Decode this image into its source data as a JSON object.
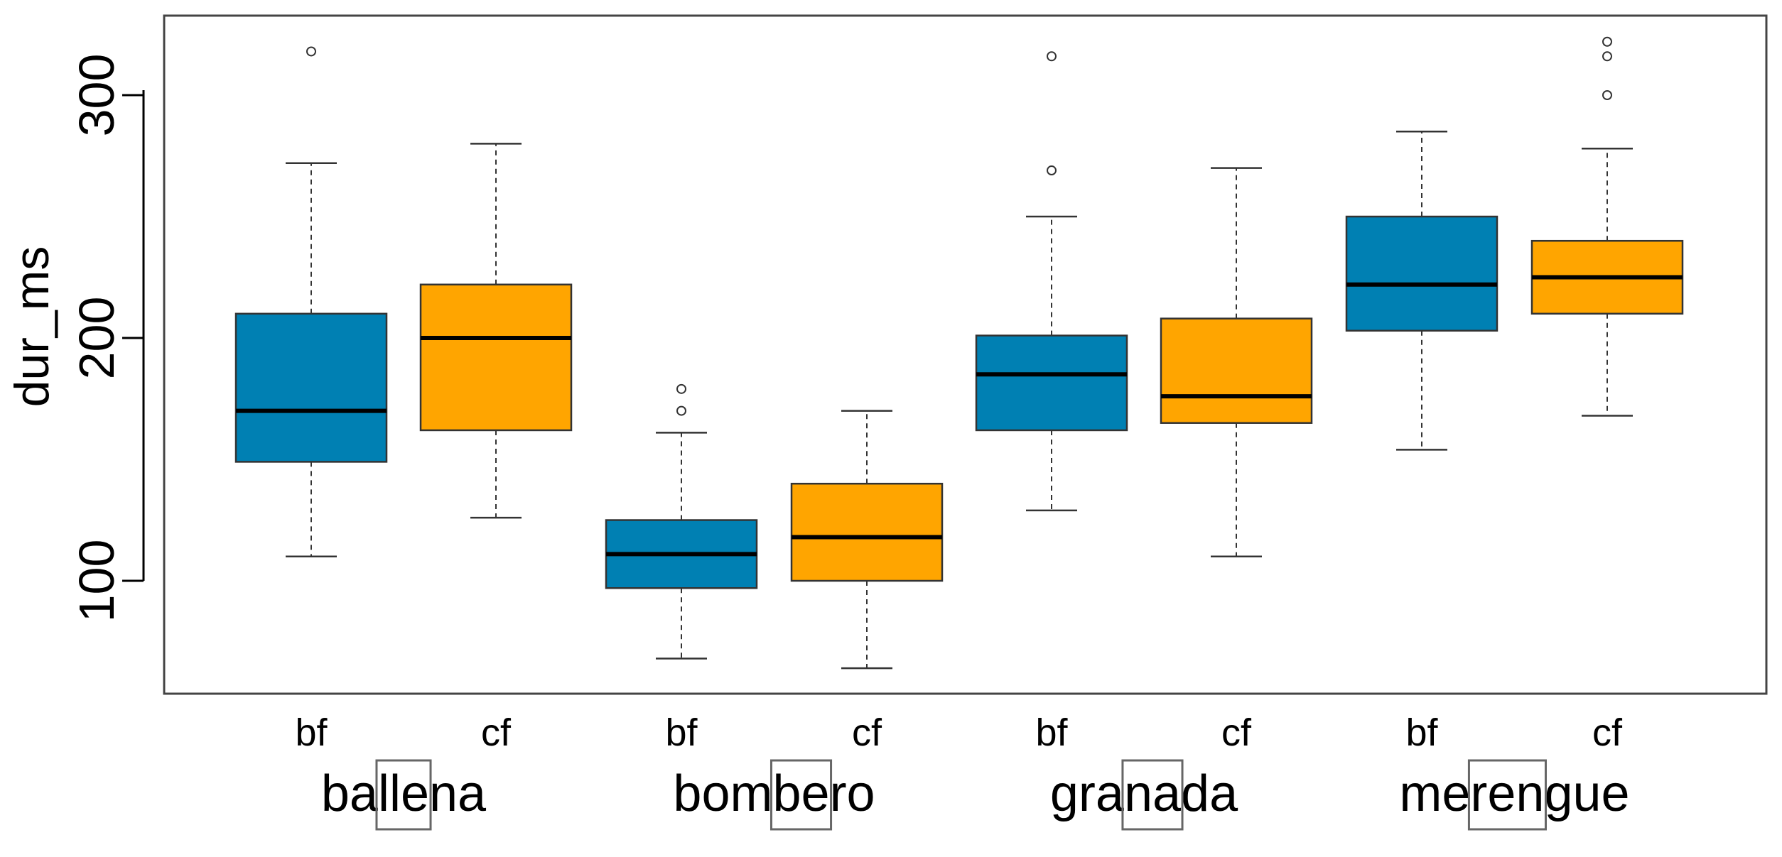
{
  "chart_data": {
    "type": "boxplot",
    "title": "",
    "xlabel": "",
    "ylabel": "dur_ms",
    "ylim": [
      50,
      330
    ],
    "yticks": [
      100,
      200,
      300
    ],
    "grid": false,
    "legend": "none",
    "colors": {
      "bf": "#0080B3",
      "cf": "#FFA500"
    },
    "groups": [
      {
        "word_parts": [
          "ba",
          "lle",
          "na"
        ]
      },
      {
        "word_parts": [
          "bom",
          "be",
          "ro"
        ]
      },
      {
        "word_parts": [
          "gra",
          "na",
          "da"
        ]
      },
      {
        "word_parts": [
          "me",
          "ren",
          "gue"
        ]
      }
    ],
    "boxes": [
      {
        "label": "bf",
        "group": 0,
        "min": 110,
        "q1": 149,
        "median": 170,
        "q3": 210,
        "max": 272,
        "outliers": [
          318
        ]
      },
      {
        "label": "cf",
        "group": 0,
        "min": 126,
        "q1": 162,
        "median": 200,
        "q3": 222,
        "max": 280,
        "outliers": []
      },
      {
        "label": "bf",
        "group": 1,
        "min": 68,
        "q1": 97,
        "median": 111,
        "q3": 125,
        "max": 161,
        "outliers": [
          170,
          179
        ]
      },
      {
        "label": "cf",
        "group": 1,
        "min": 64,
        "q1": 100,
        "median": 118,
        "q3": 140,
        "max": 170,
        "outliers": []
      },
      {
        "label": "bf",
        "group": 2,
        "min": 129,
        "q1": 162,
        "median": 185,
        "q3": 201,
        "max": 250,
        "outliers": [
          269,
          316
        ]
      },
      {
        "label": "cf",
        "group": 2,
        "min": 110,
        "q1": 165,
        "median": 176,
        "q3": 208,
        "max": 270,
        "outliers": []
      },
      {
        "label": "bf",
        "group": 3,
        "min": 154,
        "q1": 203,
        "median": 222,
        "q3": 250,
        "max": 285,
        "outliers": []
      },
      {
        "label": "cf",
        "group": 3,
        "min": 168,
        "q1": 210,
        "median": 225,
        "q3": 240,
        "max": 278,
        "outliers": [
          300,
          316,
          322
        ]
      }
    ]
  }
}
